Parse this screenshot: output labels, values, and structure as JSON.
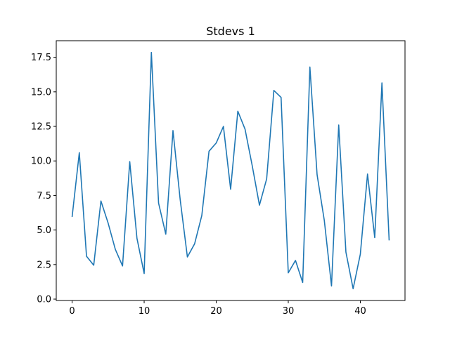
{
  "chart_data": {
    "type": "line",
    "title": "Stdevs 1",
    "xlabel": "",
    "ylabel": "",
    "xlim": [
      -2.2,
      46.2
    ],
    "ylim": [
      -0.1,
      18.7
    ],
    "grid": false,
    "xticks": [
      0,
      10,
      20,
      30,
      40
    ],
    "xtick_labels": [
      "0",
      "10",
      "20",
      "30",
      "40"
    ],
    "yticks": [
      0.0,
      2.5,
      5.0,
      7.5,
      10.0,
      12.5,
      15.0,
      17.5
    ],
    "ytick_labels": [
      "0.0",
      "2.5",
      "5.0",
      "7.5",
      "10.0",
      "12.5",
      "15.0",
      "17.5"
    ],
    "series": [
      {
        "name": "Stdevs 1",
        "color": "#1f77b4",
        "x": [
          0,
          1,
          2,
          3,
          4,
          5,
          6,
          7,
          8,
          9,
          10,
          11,
          12,
          13,
          14,
          15,
          16,
          17,
          18,
          19,
          20,
          21,
          22,
          23,
          24,
          25,
          26,
          27,
          28,
          29,
          30,
          31,
          32,
          33,
          34,
          35,
          36,
          37,
          38,
          39,
          40,
          41,
          42,
          43,
          44
        ],
        "values": [
          5.95,
          10.6,
          3.1,
          2.45,
          7.1,
          5.5,
          3.6,
          2.4,
          9.95,
          4.4,
          1.85,
          17.85,
          6.95,
          4.7,
          12.2,
          7.2,
          3.05,
          4.0,
          6.05,
          10.7,
          11.3,
          12.5,
          7.95,
          13.6,
          12.3,
          9.65,
          6.8,
          8.7,
          15.1,
          14.6,
          1.9,
          2.8,
          1.2,
          16.8,
          9.0,
          5.7,
          0.95,
          12.6,
          3.4,
          0.75,
          3.25,
          9.05,
          4.45,
          15.65,
          4.25
        ]
      }
    ]
  }
}
